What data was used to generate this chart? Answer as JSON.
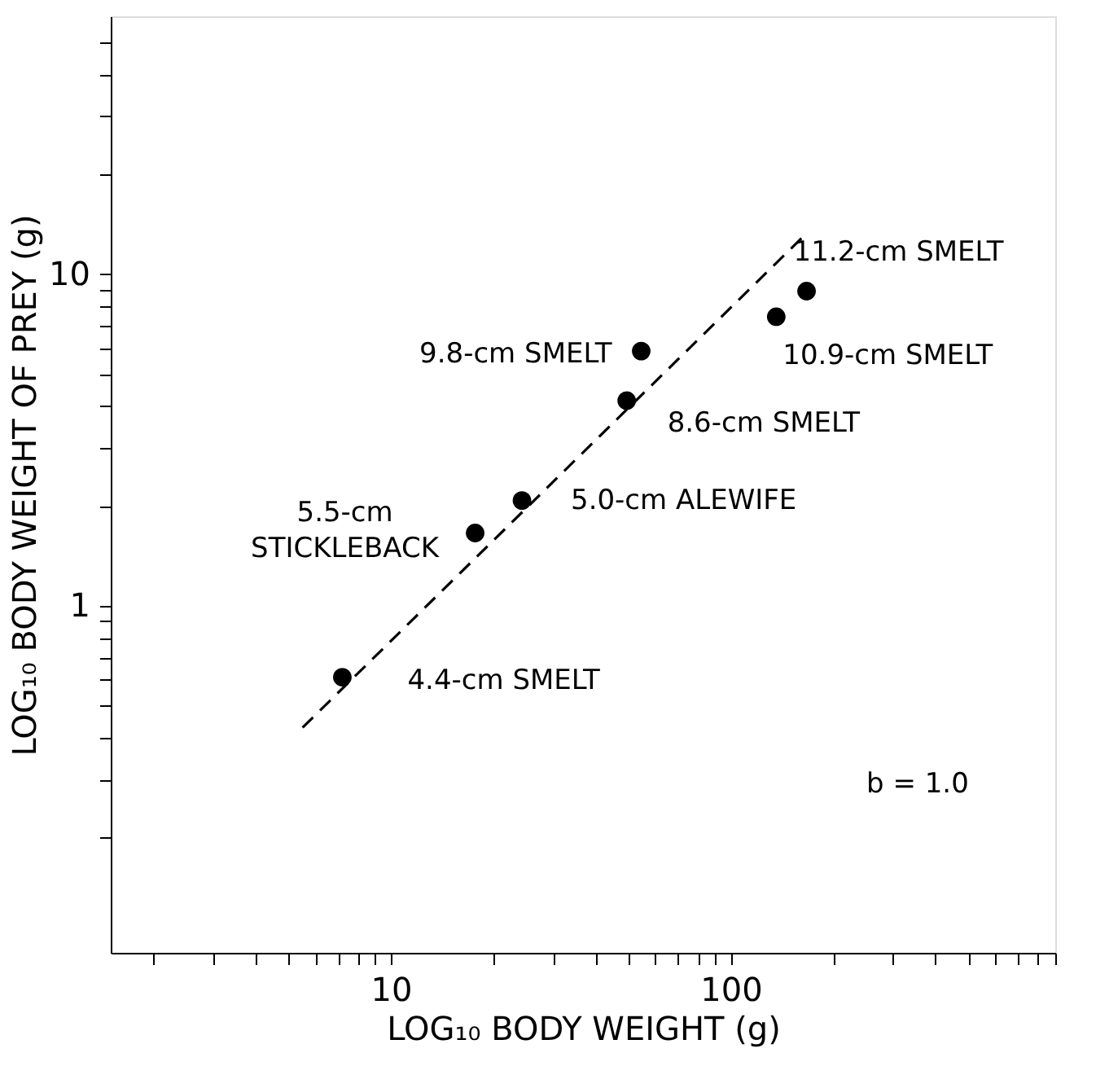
{
  "chart_data": {
    "type": "scatter",
    "xlabel": "LOG₁₀  BODY WEIGHT (g)",
    "ylabel": "LOG₁₀  BODY WEIGHT OF PREY (g)",
    "log": "xy",
    "grid": false,
    "xlim": [
      1.5,
      900
    ],
    "ylim": [
      0.09,
      60
    ],
    "xticks": [
      {
        "value": 2,
        "label": null
      },
      {
        "value": 3,
        "label": null
      },
      {
        "value": 4,
        "label": null
      },
      {
        "value": 5,
        "label": null
      },
      {
        "value": 6,
        "label": null
      },
      {
        "value": 7,
        "label": null
      },
      {
        "value": 8,
        "label": null
      },
      {
        "value": 9,
        "label": null
      },
      10,
      {
        "value": 20,
        "label": null
      },
      {
        "value": 30,
        "label": null
      },
      {
        "value": 40,
        "label": null
      },
      {
        "value": 50,
        "label": null
      },
      {
        "value": 60,
        "label": null
      },
      {
        "value": 70,
        "label": null
      },
      {
        "value": 80,
        "label": null
      },
      {
        "value": 90,
        "label": null
      },
      100,
      {
        "value": 200,
        "label": null
      },
      {
        "value": 300,
        "label": null
      },
      {
        "value": 400,
        "label": null
      },
      {
        "value": 500,
        "label": null
      },
      {
        "value": 600,
        "label": null
      },
      {
        "value": 700,
        "label": null
      },
      {
        "value": 800,
        "label": null
      },
      {
        "value": 900,
        "label": null
      }
    ],
    "yticks": [
      {
        "value": 0.2,
        "label": null
      },
      {
        "value": 0.3,
        "label": null
      },
      {
        "value": 0.4,
        "label": null
      },
      {
        "value": 0.5,
        "label": null
      },
      {
        "value": 0.6,
        "label": null
      },
      {
        "value": 0.7,
        "label": null
      },
      {
        "value": 0.8,
        "label": null
      },
      {
        "value": 0.9,
        "label": null
      },
      1,
      {
        "value": 2,
        "label": null
      },
      {
        "value": 3,
        "label": null
      },
      {
        "value": 4,
        "label": null
      },
      {
        "value": 5,
        "label": null
      },
      {
        "value": 6,
        "label": null
      },
      {
        "value": 7,
        "label": null
      },
      {
        "value": 8,
        "label": null
      },
      {
        "value": 9,
        "label": null
      },
      10,
      {
        "value": 20,
        "label": null
      },
      {
        "value": 30,
        "label": null
      },
      {
        "value": 40,
        "label": null
      },
      {
        "value": 50,
        "label": null
      }
    ],
    "series": [
      {
        "type": "line",
        "color": "#000000",
        "line_style": "dashed",
        "marker": "none",
        "x": [
          5.5,
          167
        ],
        "values": [
          0.43,
          13.3
        ]
      },
      {
        "color": "#000000",
        "marker": "circle",
        "x": [
          7.2,
          17.7,
          24.3,
          49.4,
          54.5,
          136,
          167
        ],
        "values": [
          0.61,
          1.66,
          2.08,
          4.16,
          5.87,
          7.45,
          8.9
        ]
      }
    ],
    "annotations": [
      {
        "text": "4.4-cm SMELT",
        "x": 7.2,
        "y": 0.61
      },
      {
        "text": "5.5-cm STICKLEBACK",
        "x": 17.7,
        "y": 1.66
      },
      {
        "text": "5.0-cm ALEWIFE",
        "x": 24.3,
        "y": 2.08
      },
      {
        "text": "8.6-cm SMELT",
        "x": 49.4,
        "y": 4.16
      },
      {
        "text": "9.8-cm SMELT",
        "x": 54.5,
        "y": 5.87
      },
      {
        "text": "10.9-cm SMELT",
        "x": 136,
        "y": 7.45
      },
      {
        "text": "11.2-cm SMELT",
        "x": 167,
        "y": 8.9
      },
      "b = 1.0"
    ]
  }
}
